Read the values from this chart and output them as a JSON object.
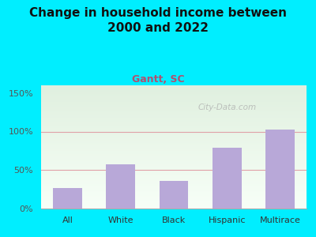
{
  "title": "Change in household income between\n2000 and 2022",
  "subtitle": "Gantt, SC",
  "categories": [
    "All",
    "White",
    "Black",
    "Hispanic",
    "Multirace"
  ],
  "values": [
    27,
    57,
    36,
    79,
    103
  ],
  "bar_color": "#b8a8d8",
  "title_fontsize": 11,
  "subtitle_fontsize": 9,
  "subtitle_color": "#b05070",
  "title_color": "#111111",
  "background_outer": "#00eeff",
  "background_inner_top": "#dff0e0",
  "background_inner_bottom": "#f8fff8",
  "ylabel_color": "#555555",
  "xlabel_color": "#333333",
  "ylim": [
    0,
    160
  ],
  "yticks": [
    0,
    50,
    100,
    150
  ],
  "ytick_labels": [
    "0%",
    "50%",
    "100%",
    "150%"
  ],
  "watermark": "City-Data.com",
  "gridline_color": "#e0a0a8",
  "gridline_50": 50,
  "gridline_100": 100
}
